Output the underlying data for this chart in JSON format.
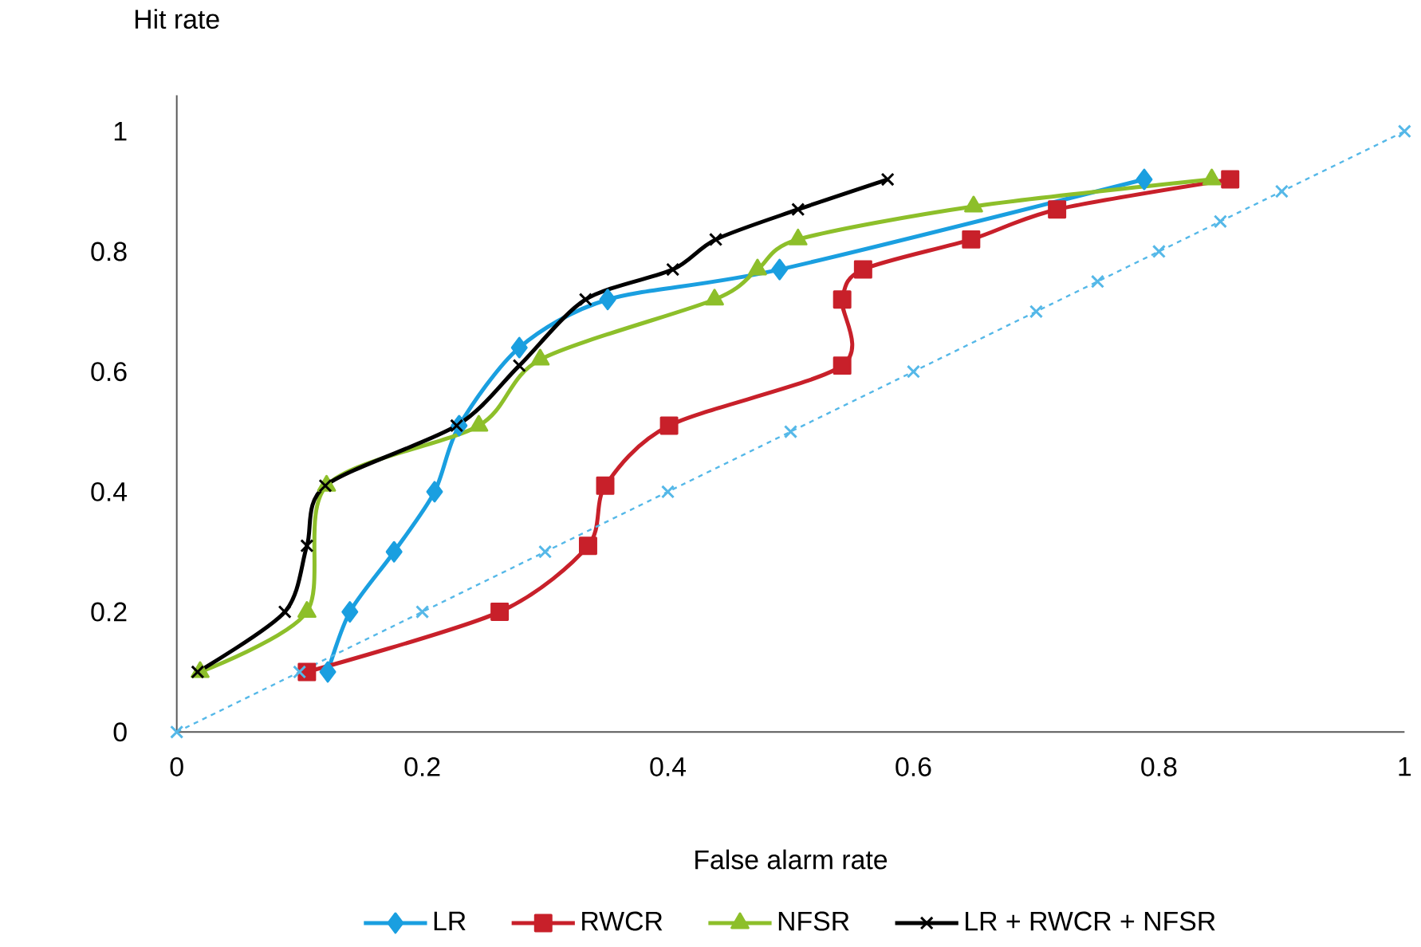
{
  "chart_data": {
    "type": "line",
    "xlabel": "False alarm rate",
    "ylabel": "Hit rate",
    "xlim": [
      0,
      1
    ],
    "ylim": [
      0,
      1.06
    ],
    "xticks": [
      0,
      0.2,
      0.4,
      0.6,
      0.8,
      1
    ],
    "yticks": [
      0,
      0.2,
      0.4,
      0.6,
      0.8,
      1
    ],
    "grid": false,
    "legend": "bottom",
    "series": [
      {
        "name": "LR",
        "color": "#1a9fe0",
        "marker": "diamond",
        "line_style": "solid",
        "x": [
          0.123,
          0.141,
          0.177,
          0.21,
          0.23,
          0.279,
          0.351,
          0.491,
          0.788
        ],
        "values": [
          0.1,
          0.2,
          0.3,
          0.4,
          0.51,
          0.64,
          0.72,
          0.77,
          0.92
        ]
      },
      {
        "name": "RWCR",
        "color": "#c8202a",
        "marker": "square",
        "line_style": "solid",
        "x": [
          0.106,
          0.263,
          0.335,
          0.349,
          0.401,
          0.542,
          0.542,
          0.559,
          0.647,
          0.717,
          0.858
        ],
        "values": [
          0.1,
          0.2,
          0.31,
          0.41,
          0.51,
          0.61,
          0.72,
          0.77,
          0.82,
          0.87,
          0.92
        ]
      },
      {
        "name": "NFSR",
        "color": "#8dbf2a",
        "marker": "triangle",
        "line_style": "solid",
        "x": [
          0.019,
          0.106,
          0.122,
          0.246,
          0.296,
          0.438,
          0.473,
          0.506,
          0.649,
          0.843
        ],
        "values": [
          0.1,
          0.2,
          0.41,
          0.51,
          0.62,
          0.72,
          0.77,
          0.82,
          0.875,
          0.92
        ]
      },
      {
        "name": "LR + RWCR + NFSR",
        "color": "#000000",
        "marker": "cross",
        "line_style": "solid",
        "x": [
          0.017,
          0.088,
          0.106,
          0.121,
          0.228,
          0.279,
          0.333,
          0.404,
          0.439,
          0.506,
          0.579
        ],
        "values": [
          0.1,
          0.2,
          0.31,
          0.41,
          0.51,
          0.61,
          0.72,
          0.77,
          0.82,
          0.87,
          0.92
        ]
      },
      {
        "color": "#55b8e8",
        "marker": "cross",
        "line_style": "dashed",
        "x": [
          0,
          0.1,
          0.2,
          0.3,
          0.4,
          0.5,
          0.6,
          0.7,
          0.75,
          0.8,
          0.85,
          0.9,
          1
        ],
        "values": [
          0,
          0.1,
          0.2,
          0.3,
          0.4,
          0.5,
          0.6,
          0.7,
          0.75,
          0.8,
          0.85,
          0.9,
          1
        ]
      }
    ]
  }
}
